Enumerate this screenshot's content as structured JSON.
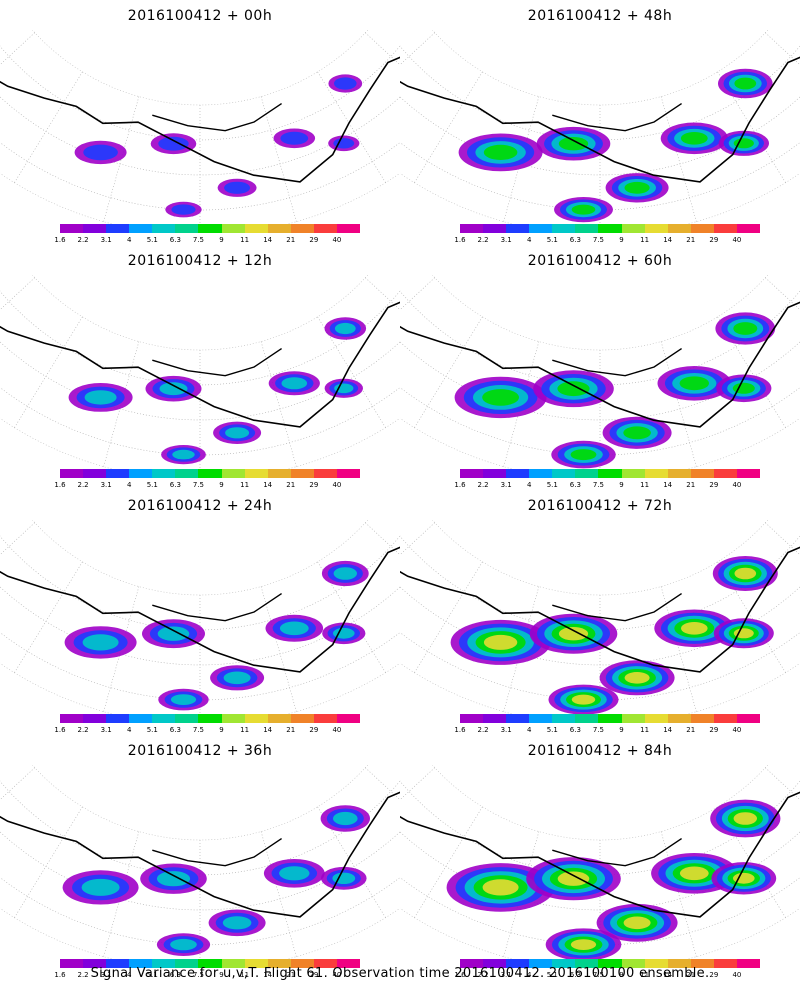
{
  "panels": [
    {
      "title": "2016100412 + 00h",
      "intensity": 0.15
    },
    {
      "title": "2016100412 + 48h",
      "intensity": 0.55
    },
    {
      "title": "2016100412 + 12h",
      "intensity": 0.3
    },
    {
      "title": "2016100412 + 60h",
      "intensity": 0.65
    },
    {
      "title": "2016100412 + 24h",
      "intensity": 0.4
    },
    {
      "title": "2016100412 + 72h",
      "intensity": 0.75
    },
    {
      "title": "2016100412 + 36h",
      "intensity": 0.45
    },
    {
      "title": "2016100412 + 84h",
      "intensity": 0.85
    }
  ],
  "colorbar": {
    "labels": [
      "1.6",
      "2.2",
      "3.1",
      "4",
      "5.1",
      "6.3",
      "7.5",
      "9",
      "11",
      "14",
      "21",
      "29",
      "40"
    ],
    "colors": [
      "#a000c8",
      "#8200dc",
      "#1e3cff",
      "#00a0ff",
      "#00c8c8",
      "#00d28c",
      "#00dc00",
      "#a0e632",
      "#e6dc32",
      "#e6af2d",
      "#f08228",
      "#fa3c3c",
      "#f00082"
    ]
  },
  "footer": "Signal Variance for u,v,T. Flight 61. Observation time 2016100412. 2016100100 ensemble."
}
